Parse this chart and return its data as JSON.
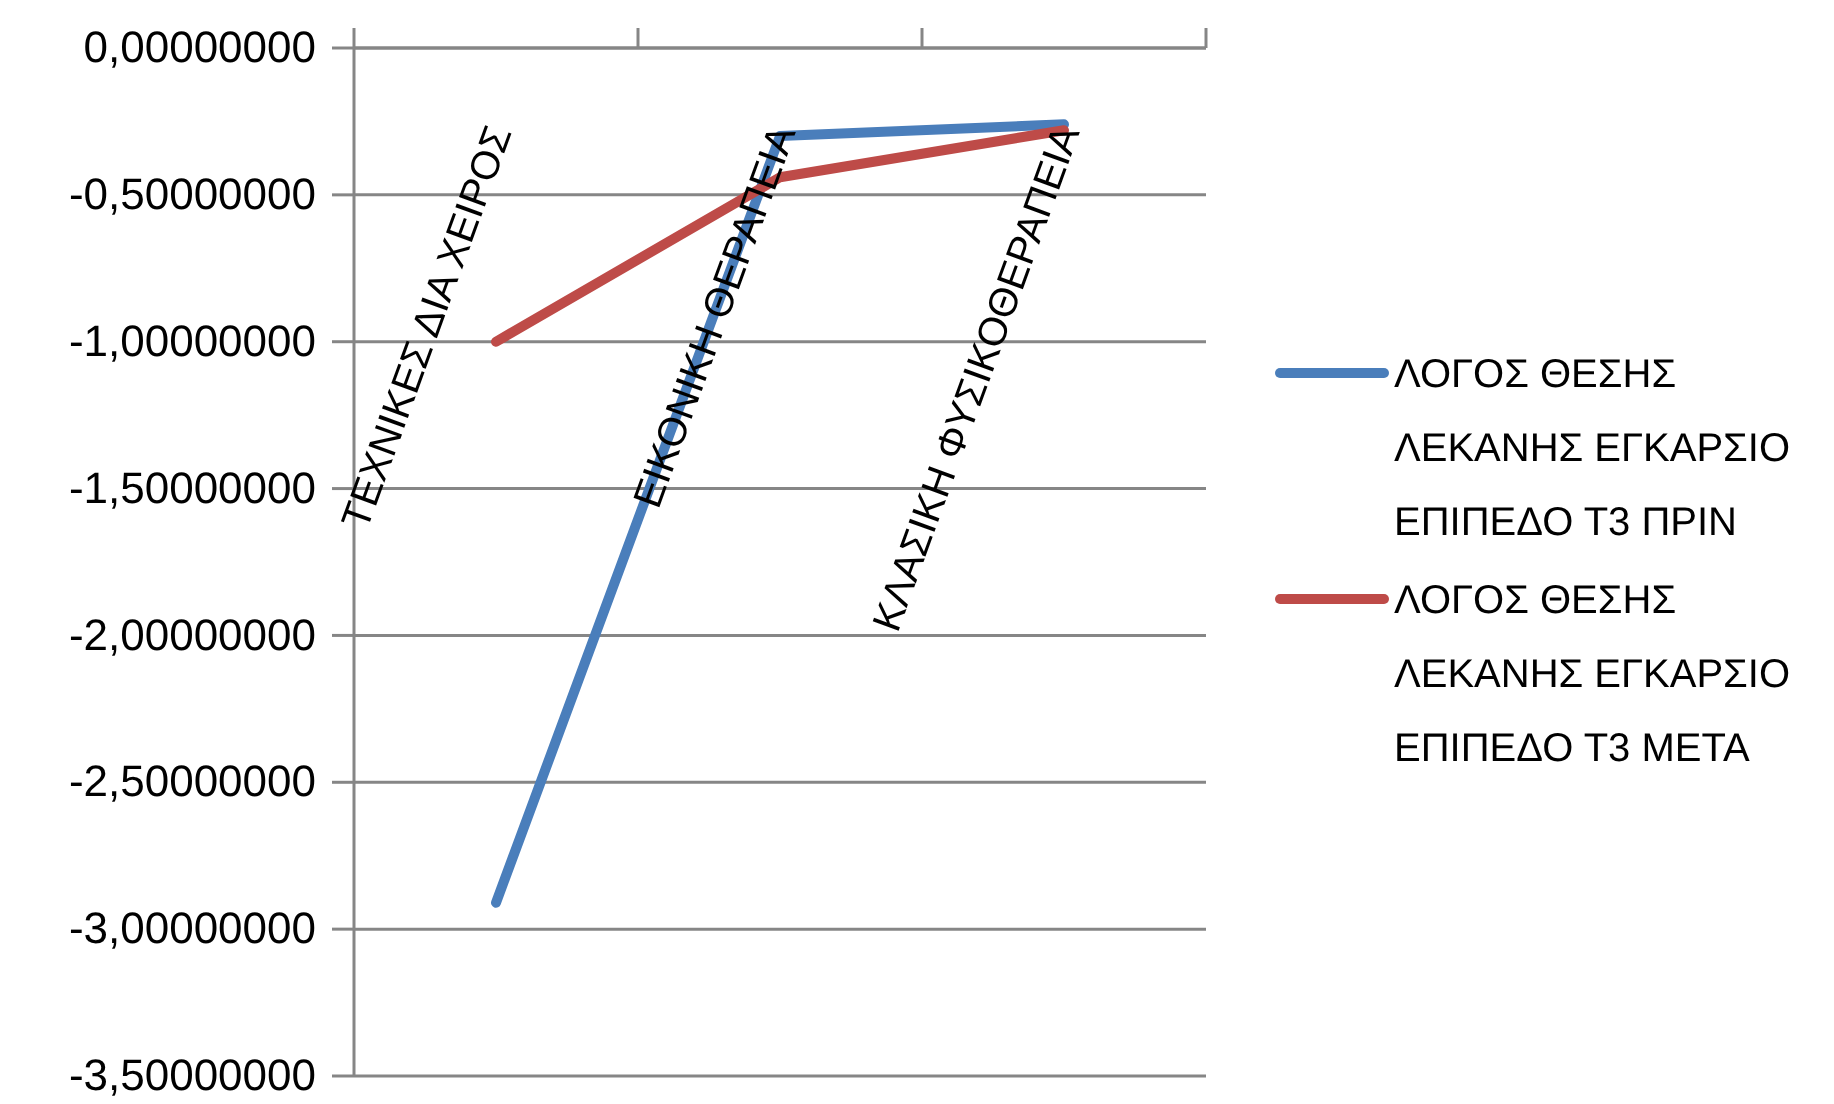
{
  "chart_data": {
    "type": "line",
    "categories": [
      "ΤΕΧΝΙΚΕΣ ΔΙΑ ΧΕΙΡΟΣ",
      "ΕΙΚΟΝΙΚΗ ΘΕΡΑΠΕΙΑ",
      "ΚΛΑΣΙΚΗ ΦΥΣΙΚΟΘΕΡΑΠΕΙΑ"
    ],
    "series": [
      {
        "name": "ΛΟΓΟΣ ΘΕΣΗΣ ΛΕΚΑΝΗΣ ΕΓΚΑΡΣΙΟ ΕΠΙΠΕΔΟ Τ3 ΠΡΙΝ",
        "color": "#4a7ebb",
        "values": [
          -2.91,
          -0.3,
          -0.26
        ]
      },
      {
        "name": "ΛΟΓΟΣ ΘΕΣΗΣ ΛΕΚΑΝΗΣ ΕΓΚΑΡΣΙΟ ΕΠΙΠΕΔΟ Τ3 ΜΕΤΑ",
        "color": "#be4b48",
        "values": [
          -1.0,
          -0.44,
          -0.28
        ]
      }
    ],
    "ylim": [
      -3.5,
      0
    ],
    "yticks": [
      {
        "value": 0,
        "label": "0,00000000"
      },
      {
        "value": -0.5,
        "label": "-0,50000000"
      },
      {
        "value": -1,
        "label": "-1,00000000"
      },
      {
        "value": -1.5,
        "label": "-1,50000000"
      },
      {
        "value": -2,
        "label": "-2,00000000"
      },
      {
        "value": -2.5,
        "label": "-2,50000000"
      },
      {
        "value": -3,
        "label": "-3,00000000"
      },
      {
        "value": -3.5,
        "label": "-3,50000000"
      }
    ],
    "grid": "y",
    "legend": "right"
  }
}
